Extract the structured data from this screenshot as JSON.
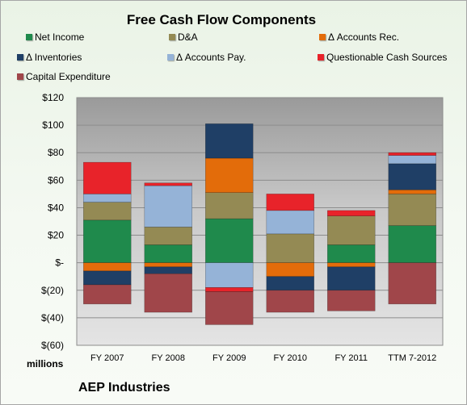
{
  "chart_data": {
    "type": "bar",
    "stacked": true,
    "title": "Free Cash Flow Components",
    "ylabel": "millions",
    "ylim": [
      -60,
      120
    ],
    "yticks": [
      120,
      100,
      80,
      60,
      40,
      20,
      0,
      -20,
      -40,
      -60
    ],
    "ytick_labels": [
      "$120",
      "$100",
      "$80",
      "$60",
      "$40",
      "$20",
      "$-",
      "$(20)",
      "$(40)",
      "$(60)"
    ],
    "categories": [
      "FY 2007",
      "FY 2008",
      "FY 2009",
      "FY 2010",
      "FY 2011",
      "TTM 7-2012"
    ],
    "grid": true,
    "legend_position": "top",
    "series": [
      {
        "name": "Net Income",
        "color": "#1f8a4c",
        "values": [
          31,
          13,
          32,
          0,
          13,
          27
        ]
      },
      {
        "name": "D&A",
        "color": "#948a54",
        "values": [
          13,
          13,
          19,
          21,
          21,
          23
        ]
      },
      {
        "name": "Δ Accounts Rec.",
        "color": "#e36c0a",
        "values": [
          -6,
          -3,
          25,
          -10,
          -3,
          3
        ]
      },
      {
        "name": "Δ Inventories",
        "color": "#1f3f66",
        "values": [
          -10,
          -5,
          25,
          -10,
          -17,
          19
        ]
      },
      {
        "name": "Δ Accounts Pay.",
        "color": "#95b3d7",
        "values": [
          6,
          30,
          -18,
          17,
          0,
          6
        ]
      },
      {
        "name": "Questionable Cash Sources",
        "color": "#e8232a",
        "values": [
          23,
          2,
          -3,
          12,
          4,
          2
        ]
      },
      {
        "name": "Capital Expenditure",
        "color": "#a0464a",
        "values": [
          -14,
          -28,
          -24,
          -16,
          -15,
          -30
        ]
      }
    ]
  },
  "labels": {
    "units": "millions",
    "company": "AEP Industries"
  }
}
